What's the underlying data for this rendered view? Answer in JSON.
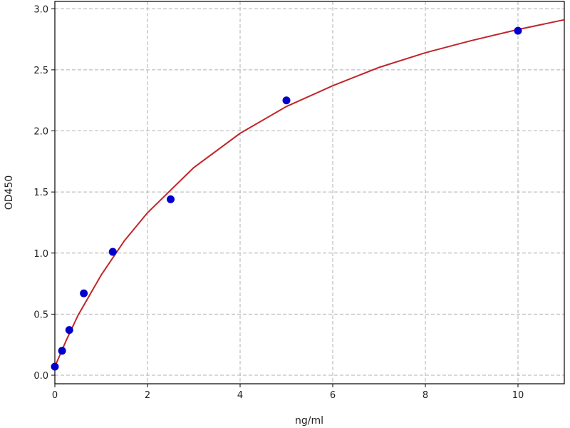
{
  "chart_data": {
    "type": "scatter",
    "title": "",
    "xlabel": "ng/ml",
    "ylabel": "OD450",
    "xlim": [
      0,
      11
    ],
    "ylim": [
      -0.07,
      3.06
    ],
    "xticks": [
      "0",
      "2",
      "4",
      "6",
      "8",
      "10"
    ],
    "yticks": [
      "0.0",
      "0.5",
      "1.0",
      "1.5",
      "2.0",
      "2.5",
      "3.0"
    ],
    "grid": true,
    "point_color": "#0000cc",
    "curve_color": "#c0262a",
    "points": {
      "x": [
        0,
        0.156,
        0.312,
        0.625,
        1.25,
        2.5,
        5,
        10
      ],
      "y": [
        0.07,
        0.2,
        0.37,
        0.67,
        1.01,
        1.44,
        2.25,
        2.82
      ]
    },
    "fit_curve": {
      "x": [
        0,
        0.25,
        0.5,
        1,
        1.5,
        2,
        3,
        4,
        5,
        6,
        7,
        8,
        9,
        10,
        11
      ],
      "y": [
        0.07,
        0.29,
        0.49,
        0.82,
        1.1,
        1.33,
        1.7,
        1.98,
        2.2,
        2.37,
        2.52,
        2.64,
        2.74,
        2.83,
        2.91
      ]
    }
  }
}
